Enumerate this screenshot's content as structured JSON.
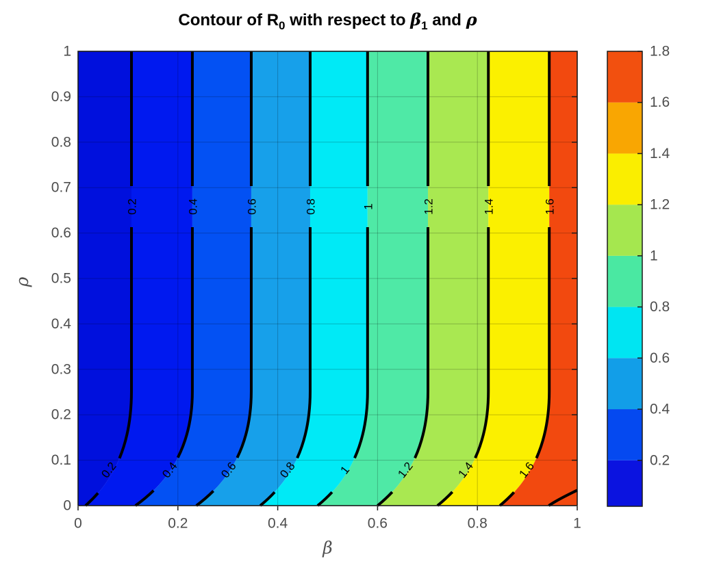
{
  "title": {
    "part1": "Contour of R",
    "sub1": "0",
    "part2": " with respect to ",
    "sym1": "β",
    "sub2": "1",
    "part3": " and ",
    "sym2": "ρ"
  },
  "chart_data": {
    "type": "contour",
    "title": "Contour of R_0 with respect to beta_1 and rho",
    "xlabel": "β",
    "ylabel": "ρ",
    "x_range": [
      0,
      1
    ],
    "y_range": [
      0,
      1
    ],
    "grid": true,
    "x_tick_labels": [
      "0",
      "0.2",
      "0.4",
      "0.6",
      "0.8",
      "1"
    ],
    "x_tick_values": [
      0,
      0.2,
      0.4,
      0.6,
      0.8,
      1
    ],
    "y_tick_labels": [
      "0",
      "0.1",
      "0.2",
      "0.3",
      "0.4",
      "0.5",
      "0.6",
      "0.7",
      "0.8",
      "0.9",
      "1"
    ],
    "y_tick_values": [
      0,
      0.1,
      0.2,
      0.3,
      0.4,
      0.5,
      0.6,
      0.7,
      0.8,
      0.9,
      1
    ],
    "contours": [
      {
        "label": "0.2",
        "level": 0.2,
        "beta_top": 0.107,
        "beta_bottom": 0.015
      },
      {
        "label": "0.4",
        "level": 0.4,
        "beta_top": 0.229,
        "beta_bottom": 0.115
      },
      {
        "label": "0.6",
        "level": 0.6,
        "beta_top": 0.347,
        "beta_bottom": 0.237
      },
      {
        "label": "0.8",
        "level": 0.8,
        "beta_top": 0.465,
        "beta_bottom": 0.365
      },
      {
        "label": "1",
        "level": 1.0,
        "beta_top": 0.58,
        "beta_bottom": 0.48
      },
      {
        "label": "1.2",
        "level": 1.2,
        "beta_top": 0.701,
        "beta_bottom": 0.6
      },
      {
        "label": "1.4",
        "level": 1.4,
        "beta_top": 0.822,
        "beta_bottom": 0.72
      },
      {
        "label": "1.6",
        "level": 1.6,
        "beta_top": 0.944,
        "beta_bottom": 0.845
      }
    ],
    "extra_contour": {
      "level": 1.8,
      "rho_right": 0.034,
      "beta_bottom": 0.943
    },
    "band_colors": [
      "#0010dd",
      "#0019ef",
      "#0351f3",
      "#17a0ea",
      "#00eaf6",
      "#4fe9a6",
      "#a9e851",
      "#fbf000",
      "#f2490f"
    ],
    "colorbar": {
      "min": 0.02,
      "max": 1.8,
      "tick_labels": [
        "0.2",
        "0.4",
        "0.6",
        "0.8",
        "1",
        "1.2",
        "1.4",
        "1.6",
        "1.8"
      ],
      "tick_values": [
        0.2,
        0.4,
        0.6,
        0.8,
        1.0,
        1.2,
        1.4,
        1.6,
        1.8
      ],
      "band_colors": [
        "#0b13e0",
        "#0549f0",
        "#129ee8",
        "#00e5f2",
        "#4ae8a2",
        "#a5e74f",
        "#faee00",
        "#f9a602",
        "#f2500f"
      ]
    }
  }
}
